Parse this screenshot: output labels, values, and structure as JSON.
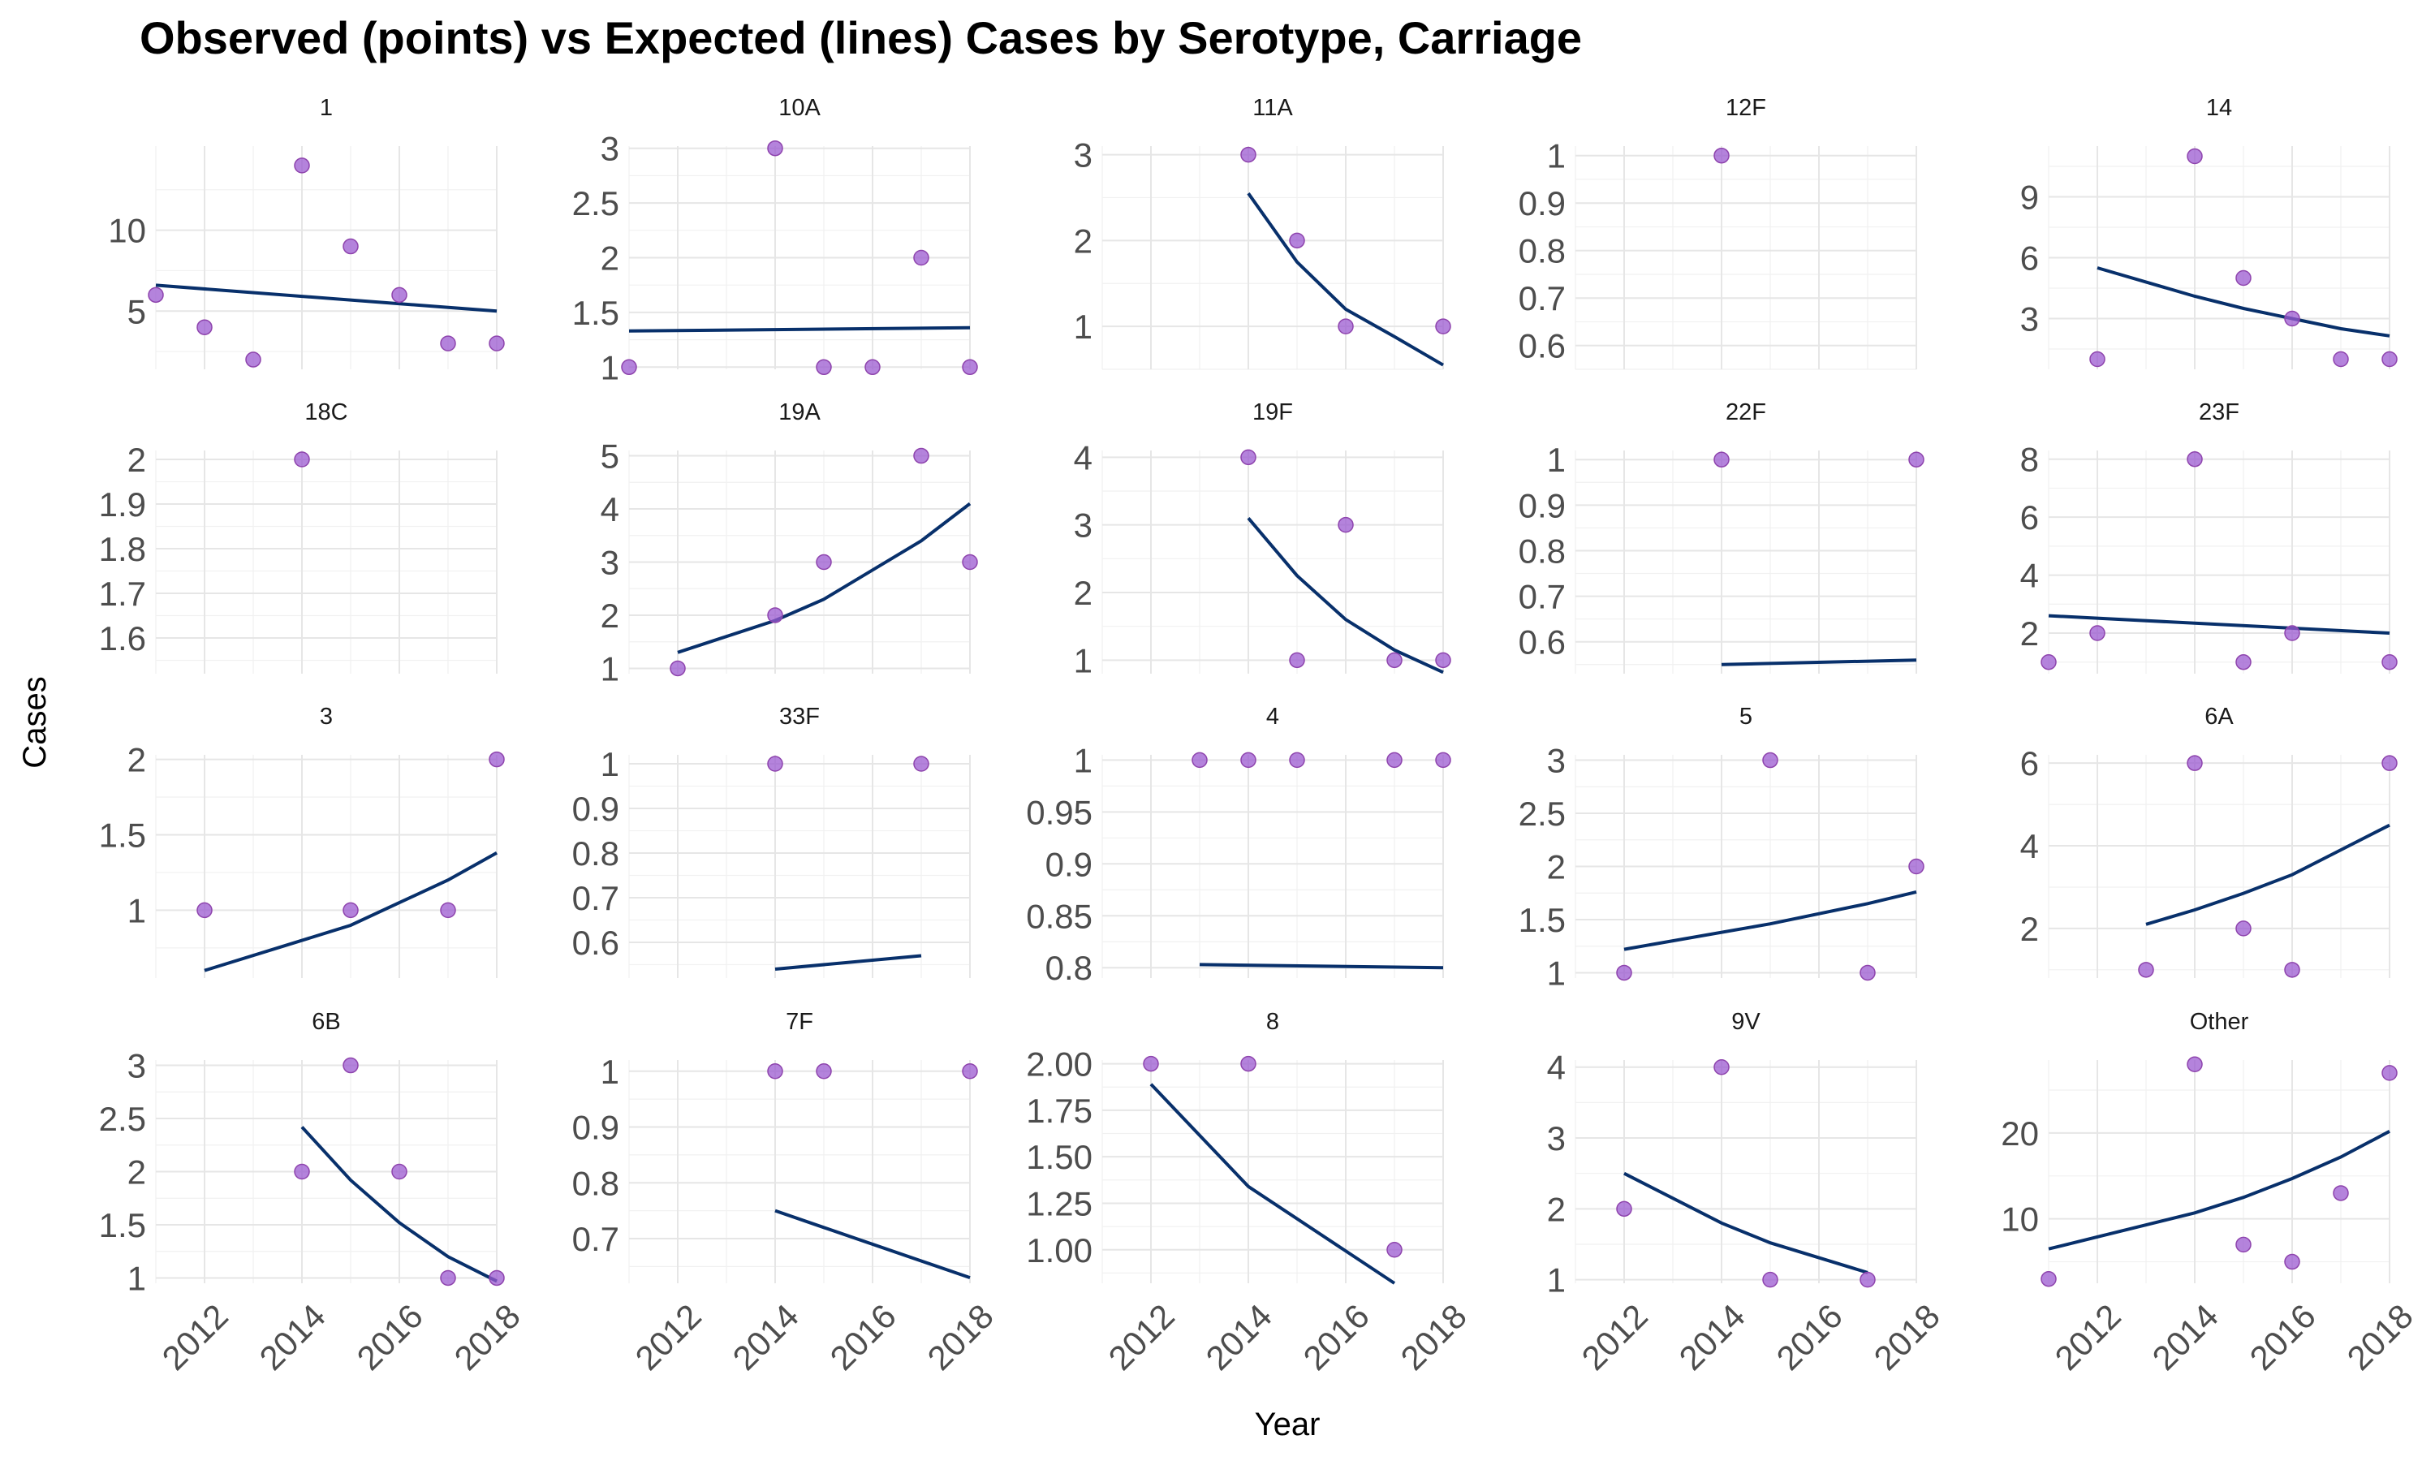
{
  "chart_data": {
    "type": "line",
    "title": "Observed (points) vs Expected (lines) Cases by Serotype, Carriage",
    "xlabel": "Year",
    "ylabel": "Cases",
    "x_ticks": [
      2012,
      2014,
      2016,
      2018
    ],
    "grid": true,
    "legend": "none",
    "colors": {
      "points": "#9b59d0",
      "lines": "#08306b"
    },
    "facets": [
      {
        "label": "1",
        "xlim": [
          2011,
          2018
        ],
        "ylim": [
          1.4,
          15.2
        ],
        "yticks": [
          5,
          10
        ],
        "observed": [
          [
            2011,
            6
          ],
          [
            2012,
            4
          ],
          [
            2013,
            2
          ],
          [
            2014,
            14
          ],
          [
            2015,
            9
          ],
          [
            2016,
            6
          ],
          [
            2017,
            3
          ],
          [
            2018,
            3
          ]
        ],
        "expected": [
          [
            2011,
            6.6
          ],
          [
            2018,
            5.0
          ]
        ]
      },
      {
        "label": "10A",
        "xlim": [
          2011,
          2018
        ],
        "ylim": [
          0.98,
          3.02
        ],
        "yticks": [
          1.0,
          1.5,
          2.0,
          2.5,
          3.0
        ],
        "observed": [
          [
            2011,
            1
          ],
          [
            2014,
            3
          ],
          [
            2015,
            1
          ],
          [
            2016,
            1
          ],
          [
            2017,
            2
          ],
          [
            2018,
            1
          ]
        ],
        "expected": [
          [
            2011,
            1.33
          ],
          [
            2018,
            1.36
          ]
        ]
      },
      {
        "label": "11A",
        "xlim": [
          2011,
          2018
        ],
        "ylim": [
          0.5,
          3.1
        ],
        "yticks": [
          1,
          2,
          3
        ],
        "observed": [
          [
            2014,
            3
          ],
          [
            2015,
            2
          ],
          [
            2016,
            1
          ],
          [
            2018,
            1
          ]
        ],
        "expected": [
          [
            2014,
            2.55
          ],
          [
            2015,
            1.75
          ],
          [
            2016,
            1.2
          ],
          [
            2017,
            0.88
          ],
          [
            2018,
            0.55
          ]
        ]
      },
      {
        "label": "12F",
        "xlim": [
          2011,
          2018
        ],
        "ylim": [
          0.55,
          1.02
        ],
        "yticks": [
          0.6,
          0.7,
          0.8,
          0.9,
          1.0
        ],
        "observed": [
          [
            2014,
            1
          ]
        ],
        "expected": []
      },
      {
        "label": "14",
        "xlim": [
          2011,
          2018
        ],
        "ylim": [
          0.5,
          11.5
        ],
        "yticks": [
          3,
          6,
          9
        ],
        "observed": [
          [
            2012,
            1
          ],
          [
            2014,
            11
          ],
          [
            2015,
            5
          ],
          [
            2016,
            3
          ],
          [
            2017,
            1
          ],
          [
            2018,
            1
          ]
        ],
        "expected": [
          [
            2012,
            5.5
          ],
          [
            2014,
            4.1
          ],
          [
            2015,
            3.5
          ],
          [
            2016,
            3.0
          ],
          [
            2017,
            2.5
          ],
          [
            2018,
            2.15
          ]
        ]
      },
      {
        "label": "18C",
        "xlim": [
          2011,
          2018
        ],
        "ylim": [
          1.52,
          2.02
        ],
        "yticks": [
          1.6,
          1.7,
          1.8,
          1.9,
          2.0
        ],
        "observed": [
          [
            2014,
            2
          ]
        ],
        "expected": []
      },
      {
        "label": "19A",
        "xlim": [
          2011,
          2018
        ],
        "ylim": [
          0.9,
          5.1
        ],
        "yticks": [
          1,
          2,
          3,
          4,
          5
        ],
        "observed": [
          [
            2012,
            1
          ],
          [
            2014,
            2
          ],
          [
            2015,
            3
          ],
          [
            2017,
            5
          ],
          [
            2018,
            3
          ]
        ],
        "expected": [
          [
            2012,
            1.3
          ],
          [
            2014,
            1.9
          ],
          [
            2015,
            2.3
          ],
          [
            2016,
            2.85
          ],
          [
            2017,
            3.4
          ],
          [
            2018,
            4.1
          ]
        ]
      },
      {
        "label": "19F",
        "xlim": [
          2011,
          2018
        ],
        "ylim": [
          0.8,
          4.1
        ],
        "yticks": [
          1,
          2,
          3,
          4
        ],
        "observed": [
          [
            2014,
            4
          ],
          [
            2015,
            1
          ],
          [
            2016,
            3
          ],
          [
            2017,
            1
          ],
          [
            2018,
            1
          ]
        ],
        "expected": [
          [
            2014,
            3.1
          ],
          [
            2015,
            2.25
          ],
          [
            2016,
            1.6
          ],
          [
            2017,
            1.15
          ],
          [
            2018,
            0.82
          ]
        ]
      },
      {
        "label": "22F",
        "xlim": [
          2011,
          2018
        ],
        "ylim": [
          0.53,
          1.02
        ],
        "yticks": [
          0.6,
          0.7,
          0.8,
          0.9,
          1.0
        ],
        "observed": [
          [
            2014,
            1
          ],
          [
            2018,
            1
          ]
        ],
        "expected": [
          [
            2014,
            0.55
          ],
          [
            2018,
            0.56
          ]
        ]
      },
      {
        "label": "23F",
        "xlim": [
          2011,
          2018
        ],
        "ylim": [
          0.6,
          8.3
        ],
        "yticks": [
          2,
          4,
          6,
          8
        ],
        "observed": [
          [
            2011,
            1
          ],
          [
            2012,
            2
          ],
          [
            2014,
            8
          ],
          [
            2015,
            1
          ],
          [
            2016,
            2
          ],
          [
            2018,
            1
          ]
        ],
        "expected": [
          [
            2011,
            2.6
          ],
          [
            2018,
            2.0
          ]
        ]
      },
      {
        "label": "3",
        "xlim": [
          2011,
          2018
        ],
        "ylim": [
          0.55,
          2.03
        ],
        "yticks": [
          1.0,
          1.5,
          2.0
        ],
        "observed": [
          [
            2012,
            1
          ],
          [
            2015,
            1
          ],
          [
            2017,
            1
          ],
          [
            2018,
            2
          ]
        ],
        "expected": [
          [
            2012,
            0.6
          ],
          [
            2015,
            0.9
          ],
          [
            2016,
            1.05
          ],
          [
            2017,
            1.2
          ],
          [
            2018,
            1.38
          ]
        ]
      },
      {
        "label": "33F",
        "xlim": [
          2011,
          2018
        ],
        "ylim": [
          0.52,
          1.02
        ],
        "yticks": [
          0.6,
          0.7,
          0.8,
          0.9,
          1.0
        ],
        "observed": [
          [
            2014,
            1
          ],
          [
            2017,
            1
          ]
        ],
        "expected": [
          [
            2014,
            0.54
          ],
          [
            2017,
            0.57
          ]
        ]
      },
      {
        "label": "4",
        "xlim": [
          2011,
          2018
        ],
        "ylim": [
          0.79,
          1.005
        ],
        "yticks": [
          0.8,
          0.85,
          0.9,
          0.95,
          1.0
        ],
        "observed": [
          [
            2013,
            1
          ],
          [
            2014,
            1
          ],
          [
            2015,
            1
          ],
          [
            2017,
            1
          ],
          [
            2018,
            1
          ]
        ],
        "expected": [
          [
            2013,
            0.803
          ],
          [
            2018,
            0.8
          ]
        ]
      },
      {
        "label": "5",
        "xlim": [
          2011,
          2018
        ],
        "ylim": [
          0.95,
          3.05
        ],
        "yticks": [
          1.0,
          1.5,
          2.0,
          2.5,
          3.0
        ],
        "observed": [
          [
            2012,
            1
          ],
          [
            2015,
            3
          ],
          [
            2017,
            1
          ],
          [
            2018,
            2
          ]
        ],
        "expected": [
          [
            2012,
            1.22
          ],
          [
            2015,
            1.46
          ],
          [
            2017,
            1.65
          ],
          [
            2018,
            1.76
          ]
        ]
      },
      {
        "label": "6A",
        "xlim": [
          2011,
          2018
        ],
        "ylim": [
          0.8,
          6.2
        ],
        "yticks": [
          2,
          4,
          6
        ],
        "observed": [
          [
            2013,
            1
          ],
          [
            2014,
            6
          ],
          [
            2015,
            2
          ],
          [
            2016,
            1
          ],
          [
            2018,
            6
          ]
        ],
        "expected": [
          [
            2013,
            2.1
          ],
          [
            2014,
            2.45
          ],
          [
            2015,
            2.85
          ],
          [
            2016,
            3.3
          ],
          [
            2017,
            3.9
          ],
          [
            2018,
            4.5
          ]
        ]
      },
      {
        "label": "6B",
        "xlim": [
          2011,
          2018
        ],
        "ylim": [
          0.95,
          3.05
        ],
        "yticks": [
          1.0,
          1.5,
          2.0,
          2.5,
          3.0
        ],
        "observed": [
          [
            2014,
            2
          ],
          [
            2015,
            3
          ],
          [
            2016,
            2
          ],
          [
            2017,
            1
          ],
          [
            2018,
            1
          ]
        ],
        "expected": [
          [
            2014,
            2.42
          ],
          [
            2015,
            1.92
          ],
          [
            2016,
            1.52
          ],
          [
            2017,
            1.2
          ],
          [
            2018,
            0.97
          ]
        ]
      },
      {
        "label": "7F",
        "xlim": [
          2011,
          2018
        ],
        "ylim": [
          0.62,
          1.02
        ],
        "yticks": [
          0.7,
          0.8,
          0.9,
          1.0
        ],
        "observed": [
          [
            2014,
            1
          ],
          [
            2015,
            1
          ],
          [
            2018,
            1
          ]
        ],
        "expected": [
          [
            2014,
            0.75
          ],
          [
            2015,
            0.72
          ],
          [
            2018,
            0.63
          ]
        ]
      },
      {
        "label": "8",
        "xlim": [
          2011,
          2018
        ],
        "ylim": [
          0.82,
          2.02
        ],
        "yticks": [
          1.0,
          1.25,
          1.5,
          1.75,
          2.0
        ],
        "ytick_labels": [
          "1.00",
          "1.25",
          "1.50",
          "1.75",
          "2.00"
        ],
        "observed": [
          [
            2012,
            2
          ],
          [
            2014,
            2
          ],
          [
            2017,
            1
          ]
        ],
        "expected": [
          [
            2012,
            1.89
          ],
          [
            2014,
            1.34
          ],
          [
            2017,
            0.82
          ]
        ]
      },
      {
        "label": "9V",
        "xlim": [
          2011,
          2018
        ],
        "ylim": [
          0.95,
          4.1
        ],
        "yticks": [
          1,
          2,
          3,
          4
        ],
        "observed": [
          [
            2012,
            2
          ],
          [
            2014,
            4
          ],
          [
            2015,
            1
          ],
          [
            2017,
            1
          ]
        ],
        "expected": [
          [
            2012,
            2.5
          ],
          [
            2014,
            1.8
          ],
          [
            2015,
            1.52
          ],
          [
            2017,
            1.1
          ]
        ]
      },
      {
        "label": "Other",
        "xlim": [
          2011,
          2018
        ],
        "ylim": [
          2.5,
          28.5
        ],
        "yticks": [
          10,
          20
        ],
        "observed": [
          [
            2011,
            3
          ],
          [
            2014,
            28
          ],
          [
            2015,
            7
          ],
          [
            2016,
            5
          ],
          [
            2017,
            13
          ],
          [
            2018,
            27
          ]
        ],
        "expected": [
          [
            2011,
            6.5
          ],
          [
            2014,
            10.7
          ],
          [
            2015,
            12.5
          ],
          [
            2016,
            14.7
          ],
          [
            2017,
            17.2
          ],
          [
            2018,
            20.2
          ]
        ]
      }
    ]
  }
}
